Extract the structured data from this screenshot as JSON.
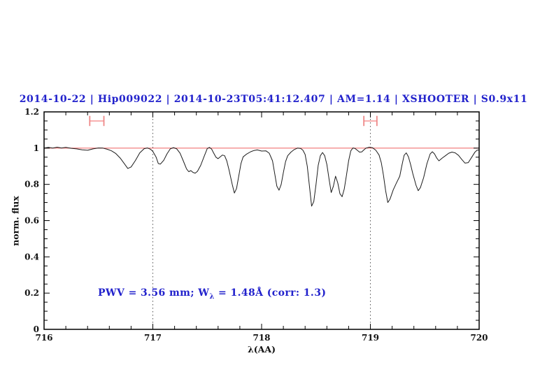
{
  "title": {
    "text": "2014-10-22 | Hip009022 | 2014-10-23T05:41:12.407 | AM=1.14 | XSHOOTER | S0.9x11"
  },
  "annotation": {
    "prefix": "PWV = 3.56 mm; W",
    "sub": "λ",
    "suffix": " = 1.48Å (corr: 1.3)"
  },
  "axes": {
    "xlabel": "λ(AA)",
    "ylabel": "norm. flux"
  },
  "colors": {
    "accent_blue": "#2222cc",
    "continuum_red": "#f07070",
    "marker_pink_bar": "#f8b0b0",
    "marker_pink_cap": "#ee8888",
    "vline_gray": "#555555",
    "spectrum_black": "#1c1c1c",
    "background": "#ffffff"
  },
  "chart_data": {
    "type": "line",
    "title": "2014-10-22 | Hip009022 | 2014-10-23T05:41:12.407 | AM=1.14 | XSHOOTER | S0.9x11",
    "xlabel": "λ(AA)",
    "ylabel": "norm. flux",
    "xlim": [
      716,
      720
    ],
    "ylim": [
      0,
      1.2
    ],
    "grid": "off",
    "legend": "none",
    "x_ticks": {
      "major": [
        716,
        717,
        718,
        719,
        720
      ],
      "labels": [
        "716",
        "717",
        "718",
        "719",
        "720"
      ],
      "minor_step": 0.2
    },
    "y_ticks": {
      "major": [
        0,
        0.2,
        0.4,
        0.6,
        0.8,
        1,
        1.2
      ],
      "labels": [
        "0",
        "0.2",
        "0.4",
        "0.6",
        "0.8",
        "1",
        "1.2"
      ],
      "minor_step": 0.05
    },
    "vlines": {
      "x": [
        717,
        719
      ],
      "style": "dotted"
    },
    "continuum_line": {
      "flux": 1.0
    },
    "telluric_band_markers": [
      {
        "x_center": 716.485,
        "x_halfwidth": 0.065,
        "flux": 1.15,
        "cap_halfheight": 0.028
      },
      {
        "x_center": 719.0,
        "x_halfwidth": 0.06,
        "flux": 1.15,
        "cap_halfheight": 0.028
      }
    ],
    "series": [
      {
        "name": "normalized spectrum",
        "points": [
          [
            716.0,
            1.0
          ],
          [
            716.04,
            1.004
          ],
          [
            716.08,
            1.0
          ],
          [
            716.12,
            1.005
          ],
          [
            716.16,
            1.001
          ],
          [
            716.2,
            1.004
          ],
          [
            716.25,
            0.999
          ],
          [
            716.3,
            0.996
          ],
          [
            716.35,
            0.991
          ],
          [
            716.4,
            0.988
          ],
          [
            716.45,
            0.996
          ],
          [
            716.5,
            1.001
          ],
          [
            716.54,
            1.0
          ],
          [
            716.58,
            0.994
          ],
          [
            716.62,
            0.985
          ],
          [
            716.66,
            0.97
          ],
          [
            716.7,
            0.945
          ],
          [
            716.74,
            0.912
          ],
          [
            716.77,
            0.888
          ],
          [
            716.8,
            0.896
          ],
          [
            716.84,
            0.932
          ],
          [
            716.88,
            0.974
          ],
          [
            716.92,
            0.997
          ],
          [
            716.95,
            1.001
          ],
          [
            716.98,
            0.993
          ],
          [
            717.0,
            0.982
          ],
          [
            717.03,
            0.95
          ],
          [
            717.05,
            0.915
          ],
          [
            717.07,
            0.912
          ],
          [
            717.1,
            0.933
          ],
          [
            717.13,
            0.968
          ],
          [
            717.16,
            0.996
          ],
          [
            717.19,
            1.003
          ],
          [
            717.22,
            0.996
          ],
          [
            717.25,
            0.972
          ],
          [
            717.28,
            0.93
          ],
          [
            717.31,
            0.885
          ],
          [
            717.33,
            0.87
          ],
          [
            717.35,
            0.876
          ],
          [
            717.37,
            0.866
          ],
          [
            717.39,
            0.862
          ],
          [
            717.41,
            0.872
          ],
          [
            717.44,
            0.905
          ],
          [
            717.47,
            0.952
          ],
          [
            717.5,
            0.998
          ],
          [
            717.52,
            1.004
          ],
          [
            717.54,
            0.995
          ],
          [
            717.56,
            0.972
          ],
          [
            717.58,
            0.95
          ],
          [
            717.6,
            0.942
          ],
          [
            717.62,
            0.952
          ],
          [
            717.64,
            0.962
          ],
          [
            717.66,
            0.958
          ],
          [
            717.68,
            0.93
          ],
          [
            717.7,
            0.88
          ],
          [
            717.73,
            0.8
          ],
          [
            717.75,
            0.752
          ],
          [
            717.77,
            0.778
          ],
          [
            717.79,
            0.845
          ],
          [
            717.81,
            0.915
          ],
          [
            717.83,
            0.952
          ],
          [
            717.86,
            0.966
          ],
          [
            717.9,
            0.98
          ],
          [
            717.93,
            0.987
          ],
          [
            717.96,
            0.99
          ],
          [
            718.0,
            0.984
          ],
          [
            718.04,
            0.985
          ],
          [
            718.07,
            0.972
          ],
          [
            718.1,
            0.93
          ],
          [
            718.12,
            0.86
          ],
          [
            718.14,
            0.79
          ],
          [
            718.16,
            0.768
          ],
          [
            718.18,
            0.8
          ],
          [
            718.2,
            0.865
          ],
          [
            718.22,
            0.925
          ],
          [
            718.24,
            0.958
          ],
          [
            718.27,
            0.978
          ],
          [
            718.3,
            0.992
          ],
          [
            718.33,
            1.0
          ],
          [
            718.36,
            0.998
          ],
          [
            718.38,
            0.988
          ],
          [
            718.4,
            0.965
          ],
          [
            718.42,
            0.9
          ],
          [
            718.44,
            0.79
          ],
          [
            718.46,
            0.68
          ],
          [
            718.48,
            0.705
          ],
          [
            718.5,
            0.8
          ],
          [
            718.52,
            0.905
          ],
          [
            718.54,
            0.958
          ],
          [
            718.56,
            0.976
          ],
          [
            718.58,
            0.958
          ],
          [
            718.6,
            0.91
          ],
          [
            718.62,
            0.83
          ],
          [
            718.64,
            0.755
          ],
          [
            718.66,
            0.79
          ],
          [
            718.68,
            0.845
          ],
          [
            718.7,
            0.808
          ],
          [
            718.72,
            0.748
          ],
          [
            718.74,
            0.732
          ],
          [
            718.76,
            0.775
          ],
          [
            718.78,
            0.85
          ],
          [
            718.8,
            0.93
          ],
          [
            718.82,
            0.985
          ],
          [
            718.84,
            1.001
          ],
          [
            718.86,
            0.998
          ],
          [
            718.88,
            0.988
          ],
          [
            718.9,
            0.978
          ],
          [
            718.92,
            0.979
          ],
          [
            718.94,
            0.99
          ],
          [
            718.96,
            1.0
          ],
          [
            718.99,
            1.005
          ],
          [
            719.02,
            1.002
          ],
          [
            719.05,
            0.988
          ],
          [
            719.08,
            0.962
          ],
          [
            719.1,
            0.92
          ],
          [
            719.12,
            0.85
          ],
          [
            719.14,
            0.765
          ],
          [
            719.16,
            0.7
          ],
          [
            719.18,
            0.718
          ],
          [
            719.21,
            0.77
          ],
          [
            719.24,
            0.808
          ],
          [
            719.27,
            0.845
          ],
          [
            719.29,
            0.905
          ],
          [
            719.31,
            0.96
          ],
          [
            719.33,
            0.974
          ],
          [
            719.35,
            0.952
          ],
          [
            719.37,
            0.91
          ],
          [
            719.39,
            0.86
          ],
          [
            719.42,
            0.795
          ],
          [
            719.44,
            0.765
          ],
          [
            719.46,
            0.782
          ],
          [
            719.49,
            0.838
          ],
          [
            719.52,
            0.915
          ],
          [
            719.55,
            0.968
          ],
          [
            719.57,
            0.98
          ],
          [
            719.59,
            0.968
          ],
          [
            719.61,
            0.945
          ],
          [
            719.63,
            0.93
          ],
          [
            719.66,
            0.945
          ],
          [
            719.69,
            0.958
          ],
          [
            719.72,
            0.972
          ],
          [
            719.75,
            0.978
          ],
          [
            719.78,
            0.974
          ],
          [
            719.81,
            0.96
          ],
          [
            719.84,
            0.938
          ],
          [
            719.87,
            0.917
          ],
          [
            719.9,
            0.92
          ],
          [
            719.93,
            0.948
          ],
          [
            719.96,
            0.977
          ],
          [
            719.98,
            0.988
          ],
          [
            720.0,
            0.99
          ]
        ]
      }
    ]
  }
}
